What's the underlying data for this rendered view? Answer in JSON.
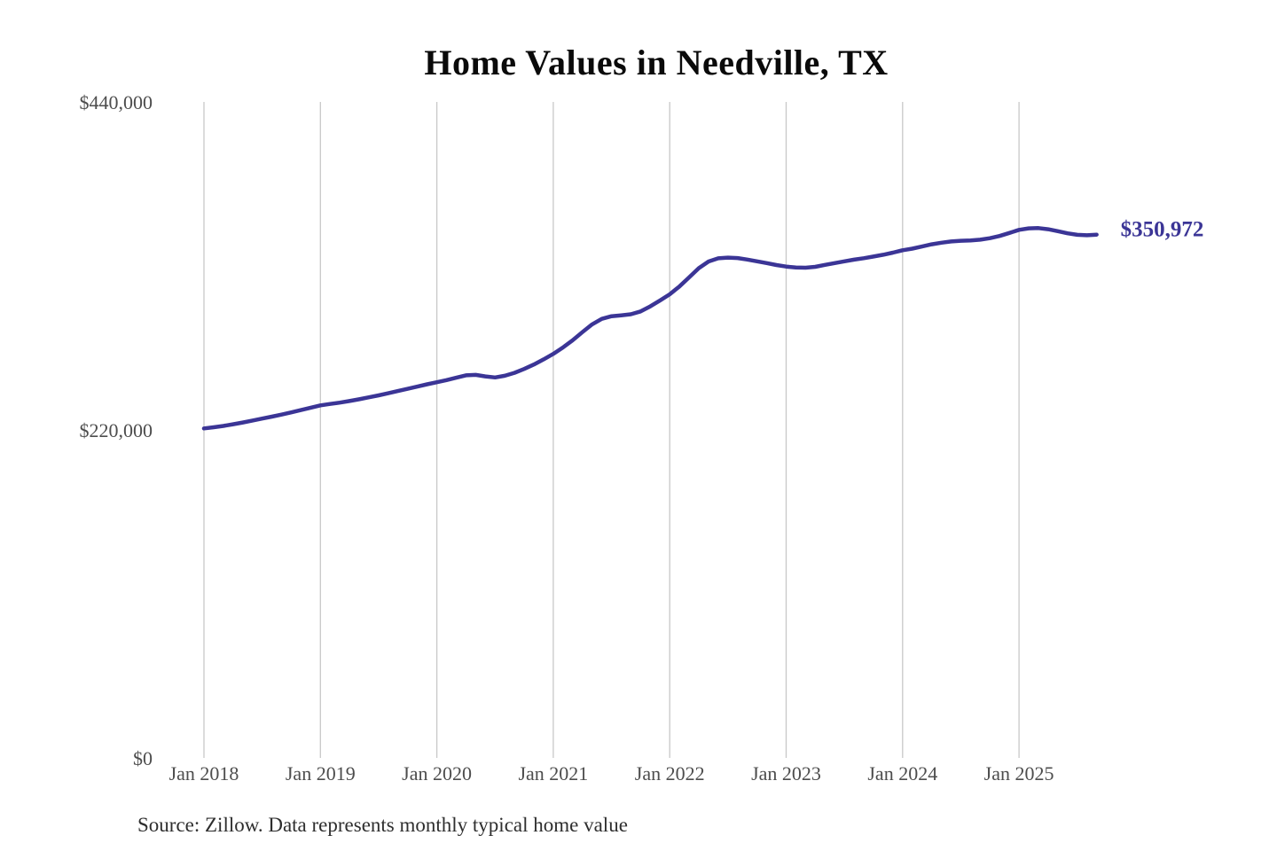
{
  "title": "Home Values in Needville, TX",
  "source_note": "Source: Zillow. Data represents monthly typical home value",
  "chart_data": {
    "type": "line",
    "title": "Home Values in Needville, TX",
    "xlabel": "",
    "ylabel": "",
    "x_start": "2018-01",
    "x_frequency": "monthly",
    "x_end": "2025-09",
    "x_tick_labels": [
      "Jan 2018",
      "Jan 2019",
      "Jan 2020",
      "Jan 2021",
      "Jan 2022",
      "Jan 2023",
      "Jan 2024",
      "Jan 2025"
    ],
    "y_ticks": [
      0,
      220000,
      440000
    ],
    "y_tick_labels": [
      "$0",
      "$220,000",
      "$440,000"
    ],
    "ylim": [
      0,
      440000
    ],
    "grid": "vertical-only",
    "legend": "none",
    "line_color": "#3b3596",
    "grid_color": "#c8c8c8",
    "end_label": "$350,972",
    "end_value": 350972,
    "series": [
      {
        "name": "Monthly typical home value",
        "values": [
          221000,
          221800,
          222700,
          223800,
          225000,
          226300,
          227600,
          228900,
          230300,
          231800,
          233300,
          234900,
          236500,
          237400,
          238300,
          239400,
          240600,
          241900,
          243200,
          244600,
          246100,
          247600,
          249100,
          250600,
          252000,
          253400,
          255000,
          256600,
          256900,
          255900,
          255200,
          256300,
          258300,
          260900,
          263900,
          267300,
          271000,
          275300,
          280200,
          285600,
          290800,
          294500,
          296300,
          296900,
          297600,
          299500,
          302900,
          306900,
          311000,
          316200,
          322300,
          328500,
          333000,
          335100,
          335600,
          335300,
          334300,
          333100,
          331900,
          330600,
          329600,
          328900,
          328800,
          329400,
          330700,
          331900,
          333100,
          334200,
          335200,
          336300,
          337500,
          338900,
          340500,
          341600,
          343000,
          344500,
          345600,
          346400,
          346900,
          347100,
          347600,
          348600,
          350100,
          352100,
          354200,
          355200,
          355400,
          354600,
          353300,
          351900,
          350900,
          350600,
          350972
        ]
      }
    ]
  }
}
